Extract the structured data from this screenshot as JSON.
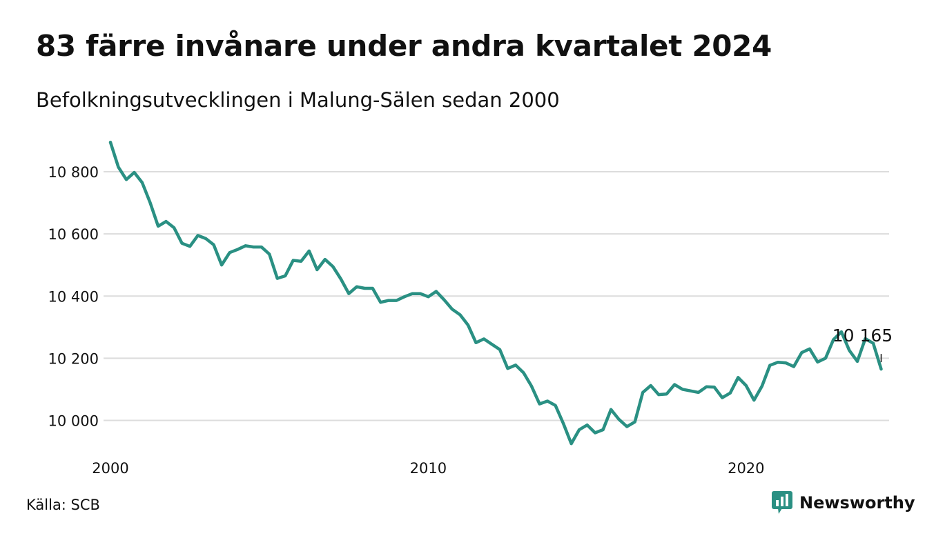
{
  "title": "83 färre invånare under andra kvartalet 2024",
  "subtitle": "Befolkningsutvecklingen i Malung-Sälen sedan 2000",
  "source": "Källa: SCB",
  "brand": {
    "name": "Newsworthy",
    "color": "#2a9083",
    "icon": "bar-chart-speech-bubble-icon"
  },
  "colors": {
    "line": "#2a9083",
    "grid": "#dcdcdc"
  },
  "chart_data": {
    "type": "line",
    "x_unit": "year (quarterly)",
    "x_start": 2000.0,
    "x_step": 0.25,
    "xlim": [
      2000,
      2024.5
    ],
    "ylim": [
      9910,
      10920
    ],
    "yticks": [
      10000,
      10200,
      10400,
      10600,
      10800
    ],
    "ytick_labels": [
      "10 000",
      "10 200",
      "10 400",
      "10 600",
      "10 800"
    ],
    "xticks": [
      2000,
      2010,
      2020
    ],
    "xtick_labels": [
      "2000",
      "2010",
      "2020"
    ],
    "grid": true,
    "end_label": "10 165",
    "values": [
      10895,
      10815,
      10775,
      10798,
      10765,
      10700,
      10625,
      10640,
      10620,
      10570,
      10560,
      10595,
      10585,
      10565,
      10500,
      10540,
      10550,
      10562,
      10558,
      10558,
      10535,
      10457,
      10465,
      10515,
      10512,
      10545,
      10485,
      10518,
      10495,
      10455,
      10408,
      10430,
      10425,
      10425,
      10380,
      10386,
      10386,
      10398,
      10408,
      10408,
      10398,
      10415,
      10388,
      10358,
      10340,
      10307,
      10250,
      10262,
      10245,
      10228,
      10167,
      10178,
      10153,
      10110,
      10053,
      10062,
      10048,
      9990,
      9925,
      9970,
      9985,
      9960,
      9970,
      10035,
      10003,
      9980,
      9995,
      10090,
      10112,
      10083,
      10085,
      10115,
      10100,
      10095,
      10090,
      10108,
      10107,
      10073,
      10088,
      10138,
      10112,
      10065,
      10110,
      10177,
      10187,
      10185,
      10173,
      10218,
      10230,
      10188,
      10200,
      10260,
      10285,
      10225,
      10190,
      10263,
      10248,
      10165
    ]
  }
}
